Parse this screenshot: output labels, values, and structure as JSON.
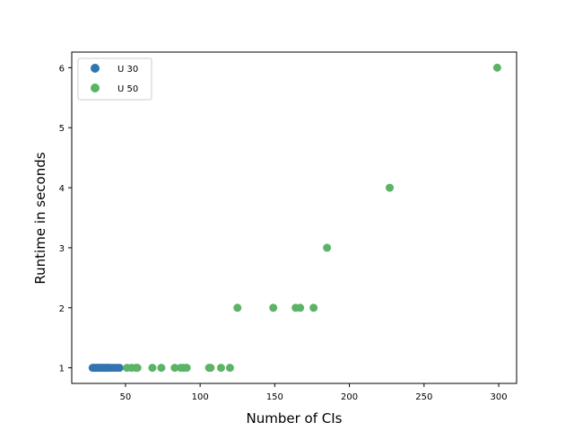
{
  "chart_data": {
    "type": "scatter",
    "title": "",
    "xlabel": "Number of CIs",
    "ylabel": "Runtime in seconds",
    "xlim": [
      14,
      312
    ],
    "ylim": [
      0.74,
      6.26
    ],
    "xticks": [
      50,
      100,
      150,
      200,
      250,
      300
    ],
    "yticks": [
      1,
      2,
      3,
      4,
      5,
      6
    ],
    "grid": false,
    "legend_position": "top-left",
    "series": [
      {
        "name": "U 30",
        "color": "#3274b0",
        "x": [
          28,
          29,
          30,
          31,
          32,
          33,
          34,
          35,
          36,
          37,
          38,
          39,
          40,
          42,
          44,
          46
        ],
        "y": [
          1,
          1,
          1,
          1,
          1,
          1,
          1,
          1,
          1,
          1,
          1,
          1,
          1,
          1,
          1,
          1
        ]
      },
      {
        "name": "U 50",
        "color": "#5bb366",
        "x": [
          51,
          54,
          57,
          58,
          68,
          74,
          83,
          87,
          89,
          91,
          106,
          107,
          114,
          120,
          125,
          149,
          164,
          167,
          176,
          185,
          227,
          299
        ],
        "y": [
          1,
          1,
          1,
          1,
          1,
          1,
          1,
          1,
          1,
          1,
          1,
          1,
          1,
          1,
          2,
          2,
          2,
          2,
          2,
          3,
          4,
          6
        ]
      }
    ]
  }
}
